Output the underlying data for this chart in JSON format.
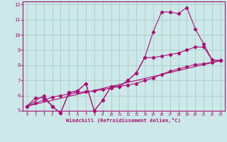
{
  "xlabel": "Windchill (Refroidissement éolien,°C)",
  "bg_color": "#cce8e8",
  "grid_color": "#aacccc",
  "line_color": "#aa1177",
  "xlim": [
    -0.5,
    23.5
  ],
  "ylim": [
    5,
    12.2
  ],
  "xticks": [
    0,
    1,
    2,
    3,
    4,
    5,
    6,
    7,
    8,
    9,
    10,
    11,
    12,
    13,
    14,
    15,
    16,
    17,
    18,
    19,
    20,
    21,
    22,
    23
  ],
  "yticks": [
    5,
    6,
    7,
    8,
    9,
    10,
    11,
    12
  ],
  "series": [
    {
      "x": [
        0,
        1,
        2,
        3,
        4,
        5,
        6,
        7,
        8,
        9,
        10,
        11,
        12,
        13,
        14,
        15,
        16,
        17,
        18,
        19,
        20,
        21,
        22,
        23
      ],
      "y": [
        5.3,
        5.85,
        5.85,
        5.3,
        4.85,
        6.2,
        6.3,
        6.8,
        5.0,
        5.7,
        6.6,
        6.6,
        7.0,
        7.5,
        8.5,
        10.2,
        11.5,
        11.5,
        11.4,
        11.8,
        10.4,
        9.4,
        8.35,
        8.3
      ]
    },
    {
      "x": [
        0,
        1,
        2,
        3,
        4,
        5,
        6,
        7,
        8,
        9,
        10,
        11,
        12,
        13,
        14,
        15,
        16,
        17,
        18,
        19,
        20,
        21,
        22,
        23
      ],
      "y": [
        5.3,
        5.5,
        5.7,
        5.9,
        6.0,
        6.1,
        6.2,
        6.25,
        6.3,
        6.4,
        6.5,
        6.6,
        6.7,
        6.8,
        7.0,
        7.15,
        7.4,
        7.6,
        7.75,
        7.9,
        8.05,
        8.1,
        8.2,
        8.3
      ]
    },
    {
      "x": [
        0,
        2,
        3,
        4,
        5,
        6,
        7,
        8,
        9,
        10,
        11,
        12,
        13,
        14,
        15,
        16,
        17,
        18,
        19,
        20,
        21,
        22,
        23
      ],
      "y": [
        5.3,
        6.0,
        5.3,
        4.85,
        6.2,
        6.3,
        6.8,
        5.0,
        5.7,
        6.6,
        6.6,
        7.0,
        7.5,
        8.5,
        8.5,
        8.6,
        8.7,
        8.8,
        9.0,
        9.2,
        9.2,
        8.35,
        8.3
      ]
    },
    {
      "x": [
        0,
        23
      ],
      "y": [
        5.3,
        8.3
      ]
    }
  ]
}
